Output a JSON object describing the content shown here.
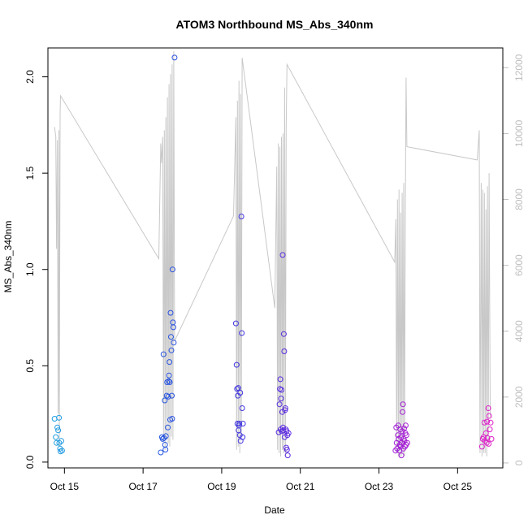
{
  "chart_data": {
    "type": "scatter",
    "title": "ATOM3 Northbound MS_Abs_340nm",
    "xlabel": "Date",
    "ylabel": "MS_Abs_340nm",
    "x_axis": {
      "unit": "days (2017-10-14 = 0)",
      "range": [
        0.58,
        12.15
      ],
      "ticks": [
        {
          "value": 1,
          "label": "Oct 15"
        },
        {
          "value": 3,
          "label": "Oct 17"
        },
        {
          "value": 5,
          "label": "Oct 19"
        },
        {
          "value": 7,
          "label": "Oct 21"
        },
        {
          "value": 9,
          "label": "Oct 23"
        },
        {
          "value": 11,
          "label": "Oct 25"
        }
      ]
    },
    "y_axis_left": {
      "range": [
        -0.03,
        2.15
      ],
      "ticks": [
        {
          "value": 0.0,
          "label": "0.0"
        },
        {
          "value": 0.5,
          "label": "0.5"
        },
        {
          "value": 1.0,
          "label": "1.0"
        },
        {
          "value": 1.5,
          "label": "1.5"
        },
        {
          "value": 2.0,
          "label": "2.0"
        }
      ]
    },
    "y_axis_right": {
      "color": "#bebebe",
      "range": [
        -150,
        12600
      ],
      "ticks": [
        {
          "value": 0,
          "label": "0"
        },
        {
          "value": 2000,
          "label": "2000"
        },
        {
          "value": 4000,
          "label": "4000"
        },
        {
          "value": 6000,
          "label": "6000"
        },
        {
          "value": 8000,
          "label": "8000"
        },
        {
          "value": 10000,
          "label": "10000"
        },
        {
          "value": 12000,
          "label": "12000"
        }
      ]
    },
    "point_color_gradient": [
      "#1e9ee0",
      "#2b3fe0",
      "#7f1ee0",
      "#e01ec8"
    ],
    "line_color": "#c8c8c8",
    "scatter_series": {
      "marker": "open-circle",
      "points": [
        {
          "x": 0.75,
          "y": 0.225
        },
        {
          "x": 0.78,
          "y": 0.13
        },
        {
          "x": 0.8,
          "y": 0.1
        },
        {
          "x": 0.82,
          "y": 0.18
        },
        {
          "x": 0.84,
          "y": 0.165
        },
        {
          "x": 0.86,
          "y": 0.23
        },
        {
          "x": 0.87,
          "y": 0.1
        },
        {
          "x": 0.89,
          "y": 0.07
        },
        {
          "x": 0.9,
          "y": 0.055
        },
        {
          "x": 0.92,
          "y": 0.11
        },
        {
          "x": 0.94,
          "y": 0.06
        },
        {
          "x": 3.45,
          "y": 0.05
        },
        {
          "x": 3.48,
          "y": 0.13
        },
        {
          "x": 3.5,
          "y": 0.12
        },
        {
          "x": 3.52,
          "y": 0.56
        },
        {
          "x": 3.53,
          "y": 0.125
        },
        {
          "x": 3.55,
          "y": 0.32
        },
        {
          "x": 3.56,
          "y": 0.09
        },
        {
          "x": 3.57,
          "y": 0.065
        },
        {
          "x": 3.58,
          "y": 0.135
        },
        {
          "x": 3.6,
          "y": 0.345
        },
        {
          "x": 3.61,
          "y": 0.415
        },
        {
          "x": 3.63,
          "y": 0.18
        },
        {
          "x": 3.64,
          "y": 0.34
        },
        {
          "x": 3.65,
          "y": 0.42
        },
        {
          "x": 3.66,
          "y": 0.45
        },
        {
          "x": 3.67,
          "y": 0.52
        },
        {
          "x": 3.68,
          "y": 0.415
        },
        {
          "x": 3.69,
          "y": 0.22
        },
        {
          "x": 3.7,
          "y": 0.775
        },
        {
          "x": 3.71,
          "y": 0.65
        },
        {
          "x": 3.72,
          "y": 0.58
        },
        {
          "x": 3.73,
          "y": 0.345
        },
        {
          "x": 3.74,
          "y": 0.225
        },
        {
          "x": 3.75,
          "y": 1.0
        },
        {
          "x": 3.76,
          "y": 0.725
        },
        {
          "x": 3.77,
          "y": 0.7
        },
        {
          "x": 3.78,
          "y": 0.62
        },
        {
          "x": 3.8,
          "y": 2.1
        },
        {
          "x": 5.36,
          "y": 0.72
        },
        {
          "x": 5.38,
          "y": 0.505
        },
        {
          "x": 5.39,
          "y": 0.38
        },
        {
          "x": 5.4,
          "y": 0.2
        },
        {
          "x": 5.41,
          "y": 0.345
        },
        {
          "x": 5.42,
          "y": 0.385
        },
        {
          "x": 5.43,
          "y": 0.165
        },
        {
          "x": 5.44,
          "y": 0.19
        },
        {
          "x": 5.45,
          "y": 0.2
        },
        {
          "x": 5.46,
          "y": 0.14
        },
        {
          "x": 5.47,
          "y": 0.36
        },
        {
          "x": 5.48,
          "y": 0.11
        },
        {
          "x": 5.5,
          "y": 1.275
        },
        {
          "x": 5.51,
          "y": 0.67
        },
        {
          "x": 5.52,
          "y": 0.28
        },
        {
          "x": 5.53,
          "y": 0.13
        },
        {
          "x": 5.54,
          "y": 0.2
        },
        {
          "x": 6.45,
          "y": 0.155
        },
        {
          "x": 6.47,
          "y": 0.3
        },
        {
          "x": 6.48,
          "y": 0.38
        },
        {
          "x": 6.49,
          "y": 0.43
        },
        {
          "x": 6.5,
          "y": 0.17
        },
        {
          "x": 6.51,
          "y": 0.33
        },
        {
          "x": 6.52,
          "y": 0.375
        },
        {
          "x": 6.53,
          "y": 0.16
        },
        {
          "x": 6.54,
          "y": 0.26
        },
        {
          "x": 6.55,
          "y": 1.075
        },
        {
          "x": 6.56,
          "y": 0.18
        },
        {
          "x": 6.57,
          "y": 0.165
        },
        {
          "x": 6.58,
          "y": 0.665
        },
        {
          "x": 6.59,
          "y": 0.575
        },
        {
          "x": 6.6,
          "y": 0.13
        },
        {
          "x": 6.61,
          "y": 0.27
        },
        {
          "x": 6.62,
          "y": 0.28
        },
        {
          "x": 6.63,
          "y": 0.17
        },
        {
          "x": 6.64,
          "y": 0.075
        },
        {
          "x": 6.65,
          "y": 0.16
        },
        {
          "x": 6.66,
          "y": 0.065
        },
        {
          "x": 6.67,
          "y": 0.14
        },
        {
          "x": 6.68,
          "y": 0.035
        },
        {
          "x": 6.7,
          "y": 0.15
        },
        {
          "x": 9.42,
          "y": 0.06
        },
        {
          "x": 9.44,
          "y": 0.18
        },
        {
          "x": 9.45,
          "y": 0.1
        },
        {
          "x": 9.46,
          "y": 0.07
        },
        {
          "x": 9.48,
          "y": 0.14
        },
        {
          "x": 9.49,
          "y": 0.19
        },
        {
          "x": 9.5,
          "y": 0.12
        },
        {
          "x": 9.52,
          "y": 0.06
        },
        {
          "x": 9.53,
          "y": 0.09
        },
        {
          "x": 9.54,
          "y": 0.17
        },
        {
          "x": 9.55,
          "y": 0.08
        },
        {
          "x": 9.56,
          "y": 0.13
        },
        {
          "x": 9.57,
          "y": 0.035
        },
        {
          "x": 9.58,
          "y": 0.1
        },
        {
          "x": 9.59,
          "y": 0.16
        },
        {
          "x": 9.6,
          "y": 0.26
        },
        {
          "x": 9.61,
          "y": 0.3
        },
        {
          "x": 9.62,
          "y": 0.07
        },
        {
          "x": 9.63,
          "y": 0.12
        },
        {
          "x": 9.64,
          "y": 0.175
        },
        {
          "x": 9.65,
          "y": 0.11
        },
        {
          "x": 9.66,
          "y": 0.08
        },
        {
          "x": 9.67,
          "y": 0.15
        },
        {
          "x": 9.68,
          "y": 0.19
        },
        {
          "x": 9.69,
          "y": 0.09
        },
        {
          "x": 9.7,
          "y": 0.14
        },
        {
          "x": 9.72,
          "y": 0.1
        },
        {
          "x": 11.62,
          "y": 0.08
        },
        {
          "x": 11.64,
          "y": 0.12
        },
        {
          "x": 11.66,
          "y": 0.13
        },
        {
          "x": 11.68,
          "y": 0.205
        },
        {
          "x": 11.7,
          "y": 0.11
        },
        {
          "x": 11.72,
          "y": 0.15
        },
        {
          "x": 11.74,
          "y": 0.1
        },
        {
          "x": 11.75,
          "y": 0.21
        },
        {
          "x": 11.76,
          "y": 0.125
        },
        {
          "x": 11.78,
          "y": 0.28
        },
        {
          "x": 11.79,
          "y": 0.095
        },
        {
          "x": 11.8,
          "y": 0.24
        },
        {
          "x": 11.82,
          "y": 0.17
        },
        {
          "x": 11.84,
          "y": 0.205
        },
        {
          "x": 11.86,
          "y": 0.12
        }
      ]
    },
    "line_series": {
      "axis": "right",
      "points": [
        [
          0.75,
          10200
        ],
        [
          0.78,
          9900
        ],
        [
          0.8,
          6500
        ],
        [
          0.82,
          9800
        ],
        [
          0.84,
          1500
        ],
        [
          0.86,
          10100
        ],
        [
          0.87,
          500
        ],
        [
          0.89,
          10600
        ],
        [
          0.9,
          11150
        ],
        [
          3.4,
          6200
        ],
        [
          3.45,
          9700
        ],
        [
          3.47,
          9100
        ],
        [
          3.5,
          9900
        ],
        [
          3.52,
          700
        ],
        [
          3.54,
          10100
        ],
        [
          3.56,
          400
        ],
        [
          3.58,
          10500
        ],
        [
          3.6,
          700
        ],
        [
          3.62,
          11100
        ],
        [
          3.64,
          600
        ],
        [
          3.66,
          11500
        ],
        [
          3.68,
          500
        ],
        [
          3.7,
          11800
        ],
        [
          3.72,
          800
        ],
        [
          3.74,
          12100
        ],
        [
          3.76,
          700
        ],
        [
          3.78,
          12500
        ],
        [
          3.8,
          3700
        ],
        [
          5.3,
          7500
        ],
        [
          5.33,
          9000
        ],
        [
          5.36,
          10500
        ],
        [
          5.38,
          400
        ],
        [
          5.4,
          11000
        ],
        [
          5.42,
          500
        ],
        [
          5.44,
          11600
        ],
        [
          5.46,
          300
        ],
        [
          5.48,
          11200
        ],
        [
          5.5,
          800
        ],
        [
          5.52,
          12300
        ],
        [
          6.35,
          4700
        ],
        [
          6.4,
          9000
        ],
        [
          6.42,
          400
        ],
        [
          6.44,
          9700
        ],
        [
          6.46,
          300
        ],
        [
          6.48,
          9600
        ],
        [
          6.5,
          200
        ],
        [
          6.52,
          9900
        ],
        [
          6.54,
          400
        ],
        [
          6.56,
          10000
        ],
        [
          6.58,
          300
        ],
        [
          6.6,
          11400
        ],
        [
          6.62,
          200
        ],
        [
          6.64,
          10200
        ],
        [
          6.66,
          12100
        ],
        [
          9.4,
          6100
        ],
        [
          9.43,
          7400
        ],
        [
          9.45,
          300
        ],
        [
          9.47,
          8000
        ],
        [
          9.49,
          200
        ],
        [
          9.51,
          8300
        ],
        [
          9.53,
          150
        ],
        [
          9.55,
          7600
        ],
        [
          9.57,
          200
        ],
        [
          9.59,
          8200
        ],
        [
          9.61,
          300
        ],
        [
          9.63,
          8500
        ],
        [
          9.65,
          200
        ],
        [
          9.67,
          7700
        ],
        [
          9.69,
          11700
        ],
        [
          9.71,
          9600
        ],
        [
          11.5,
          9200
        ],
        [
          11.55,
          10100
        ],
        [
          11.57,
          300
        ],
        [
          11.6,
          8500
        ],
        [
          11.62,
          200
        ],
        [
          11.64,
          8300
        ],
        [
          11.66,
          300
        ],
        [
          11.68,
          8200
        ],
        [
          11.7,
          300
        ],
        [
          11.72,
          7700
        ],
        [
          11.74,
          200
        ],
        [
          11.76,
          8400
        ],
        [
          11.78,
          600
        ],
        [
          11.8,
          8800
        ],
        [
          11.83,
          1400
        ]
      ]
    }
  }
}
